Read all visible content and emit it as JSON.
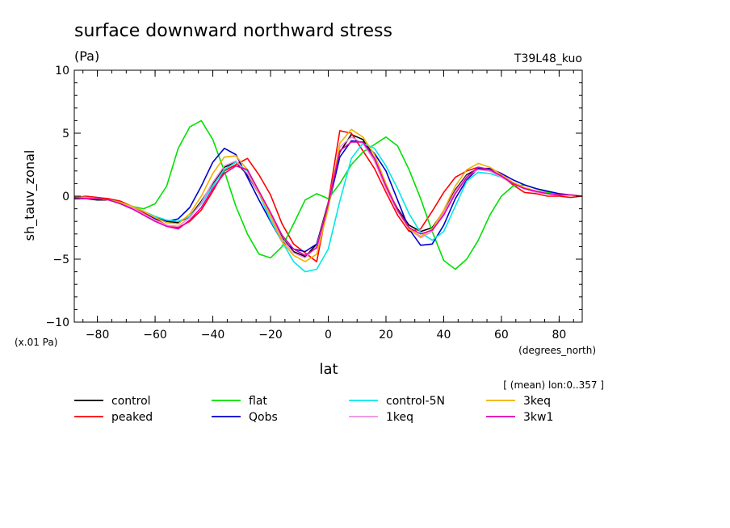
{
  "chart_data": {
    "type": "line",
    "title": "surface downward northward stress",
    "units": "(Pa)",
    "run_label": "T39L48_kuo",
    "ylabel": "sh_tauv_zonal",
    "xlabel": "lat",
    "x_units": "(degrees_north)",
    "y_scale_label": "(x.01 Pa)",
    "subset_label": "[ (mean) lon:0..357 ]",
    "xlim": [
      -88,
      88
    ],
    "ylim": [
      -10,
      10
    ],
    "x_ticks": [
      -80,
      -60,
      -40,
      -20,
      0,
      20,
      40,
      60,
      80
    ],
    "y_ticks": [
      -10,
      -5,
      0,
      5,
      10
    ],
    "legend_placement": "bottom",
    "grid": false,
    "x": [
      -88,
      -84,
      -80,
      -76,
      -72,
      -68,
      -64,
      -60,
      -56,
      -52,
      -48,
      -44,
      -40,
      -36,
      -32,
      -28,
      -24,
      -20,
      -16,
      -12,
      -8,
      -4,
      0,
      4,
      8,
      12,
      16,
      20,
      24,
      28,
      32,
      36,
      40,
      44,
      48,
      52,
      56,
      60,
      64,
      68,
      72,
      76,
      80,
      84,
      88
    ],
    "series": [
      {
        "name": "control",
        "color": "#000000",
        "values": [
          -0.2,
          -0.2,
          -0.3,
          -0.3,
          -0.5,
          -0.8,
          -1.2,
          -1.7,
          -2.0,
          -2.1,
          -1.6,
          -0.4,
          1.0,
          2.3,
          2.7,
          1.7,
          0.2,
          -1.5,
          -3.3,
          -4.4,
          -4.8,
          -3.8,
          -0.5,
          3.5,
          4.9,
          4.5,
          3.0,
          0.8,
          -1.0,
          -2.3,
          -2.8,
          -2.5,
          -1.2,
          0.5,
          1.7,
          2.2,
          2.0,
          1.6,
          1.0,
          0.6,
          0.4,
          0.2,
          0.1,
          0.1,
          0.0
        ]
      },
      {
        "name": "peaked",
        "color": "#ff0000",
        "values": [
          -0.1,
          0.0,
          -0.1,
          -0.2,
          -0.4,
          -0.8,
          -1.3,
          -1.8,
          -2.3,
          -2.5,
          -2.0,
          -1.1,
          0.4,
          2.0,
          2.5,
          3.0,
          1.7,
          0.1,
          -2.2,
          -3.8,
          -4.5,
          -5.2,
          -0.5,
          5.2,
          5.0,
          3.6,
          2.2,
          0.3,
          -1.5,
          -2.8,
          -2.6,
          -1.2,
          0.3,
          1.5,
          2.0,
          2.3,
          2.1,
          1.6,
          0.9,
          0.3,
          0.2,
          0.0,
          0.0,
          -0.1,
          0.0
        ]
      },
      {
        "name": "flat",
        "color": "#00e000",
        "values": [
          -0.1,
          -0.2,
          -0.2,
          -0.3,
          -0.5,
          -0.8,
          -1.0,
          -0.6,
          0.8,
          3.8,
          5.5,
          6.0,
          4.5,
          2.0,
          -0.8,
          -3.0,
          -4.6,
          -4.9,
          -4.0,
          -2.2,
          -0.3,
          0.2,
          -0.2,
          1.0,
          2.5,
          3.5,
          4.1,
          4.7,
          4.0,
          2.1,
          -0.2,
          -2.8,
          -5.1,
          -5.8,
          -5.0,
          -3.5,
          -1.5,
          0.0,
          0.8,
          0.9,
          0.6,
          0.3,
          0.1,
          0.1,
          0.0
        ]
      },
      {
        "name": "Qobs",
        "color": "#0000cc",
        "values": [
          -0.1,
          -0.2,
          -0.2,
          -0.3,
          -0.6,
          -1.0,
          -1.4,
          -1.8,
          -2.0,
          -1.8,
          -0.9,
          0.8,
          2.7,
          3.8,
          3.3,
          1.5,
          -0.3,
          -2.0,
          -3.6,
          -4.2,
          -4.4,
          -3.8,
          -0.8,
          3.1,
          4.4,
          4.3,
          3.4,
          2.0,
          -0.3,
          -2.6,
          -3.9,
          -3.8,
          -2.3,
          -0.2,
          1.3,
          2.2,
          2.2,
          1.8,
          1.3,
          0.9,
          0.6,
          0.4,
          0.2,
          0.1,
          0.0
        ]
      },
      {
        "name": "control-5N",
        "color": "#00e8e8",
        "values": [
          -0.1,
          -0.1,
          -0.2,
          -0.3,
          -0.5,
          -0.8,
          -1.2,
          -1.6,
          -1.9,
          -2.0,
          -1.6,
          -0.6,
          0.8,
          2.1,
          2.7,
          2.0,
          0.2,
          -1.9,
          -3.6,
          -5.2,
          -6.0,
          -5.8,
          -4.2,
          -0.4,
          3.0,
          4.2,
          3.8,
          2.4,
          0.6,
          -1.4,
          -2.9,
          -3.5,
          -2.8,
          -0.8,
          1.2,
          1.9,
          1.8,
          1.5,
          1.0,
          0.6,
          0.3,
          0.2,
          0.1,
          0.1,
          0.0
        ]
      },
      {
        "name": "1keq",
        "color": "#f08ce0",
        "values": [
          -0.1,
          -0.2,
          -0.2,
          -0.3,
          -0.6,
          -0.9,
          -1.4,
          -1.9,
          -2.3,
          -2.4,
          -1.7,
          -0.5,
          1.1,
          2.4,
          2.8,
          1.8,
          0.2,
          -1.5,
          -3.4,
          -4.5,
          -4.9,
          -4.0,
          -0.6,
          3.9,
          4.7,
          4.2,
          2.8,
          0.6,
          -1.2,
          -2.6,
          -3.3,
          -2.8,
          -1.3,
          0.4,
          1.6,
          2.1,
          2.0,
          1.5,
          1.0,
          0.6,
          0.3,
          0.2,
          0.1,
          0.1,
          0.0
        ]
      },
      {
        "name": "3keq",
        "color": "#f0b000",
        "values": [
          -0.1,
          -0.1,
          -0.2,
          -0.3,
          -0.5,
          -0.8,
          -1.2,
          -1.7,
          -2.1,
          -2.2,
          -1.4,
          0.0,
          1.8,
          3.1,
          3.2,
          2.1,
          0.3,
          -1.6,
          -3.6,
          -4.7,
          -5.2,
          -4.6,
          -1.0,
          4.2,
          5.3,
          4.7,
          3.3,
          1.0,
          -1.1,
          -2.6,
          -3.2,
          -2.6,
          -1.1,
          0.8,
          2.1,
          2.6,
          2.3,
          1.7,
          1.1,
          0.7,
          0.4,
          0.2,
          0.1,
          0.1,
          0.0
        ]
      },
      {
        "name": "3kw1",
        "color": "#e000b0",
        "values": [
          -0.1,
          -0.2,
          -0.2,
          -0.3,
          -0.6,
          -1.0,
          -1.5,
          -2.0,
          -2.4,
          -2.6,
          -1.9,
          -0.9,
          0.6,
          1.8,
          2.4,
          2.1,
          0.4,
          -1.3,
          -3.1,
          -4.2,
          -4.7,
          -4.1,
          -0.6,
          3.6,
          4.3,
          4.3,
          3.0,
          0.8,
          -1.1,
          -2.5,
          -3.0,
          -2.7,
          -1.5,
          0.2,
          1.5,
          2.3,
          2.1,
          1.6,
          1.0,
          0.6,
          0.4,
          0.2,
          0.1,
          0.1,
          0.0
        ]
      }
    ]
  }
}
